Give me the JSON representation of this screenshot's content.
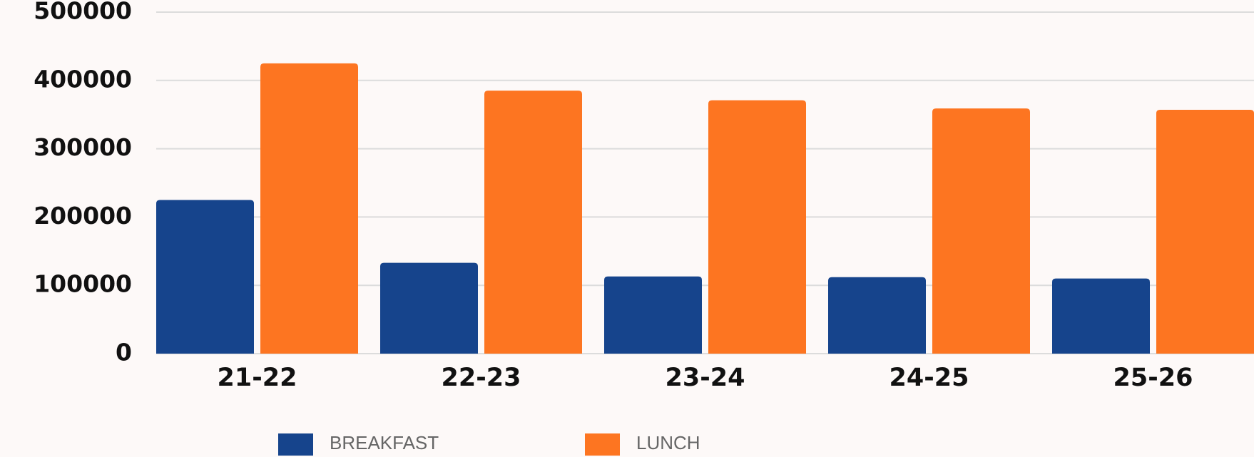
{
  "chart_data": {
    "type": "bar",
    "categories": [
      "21-22",
      "22-23",
      "23-24",
      "24-25",
      "25-26"
    ],
    "series": [
      {
        "name": "BREAKFAST",
        "color": "#16448c",
        "values": [
          225000,
          133000,
          113000,
          112000,
          110000
        ]
      },
      {
        "name": "LUNCH",
        "color": "#fd7521",
        "values": [
          425000,
          385000,
          371000,
          359000,
          357000
        ]
      }
    ],
    "ylim": [
      0,
      500000
    ],
    "yticks": [
      0,
      100000,
      200000,
      300000,
      400000,
      500000
    ],
    "grid": true,
    "legend": "bottom"
  }
}
